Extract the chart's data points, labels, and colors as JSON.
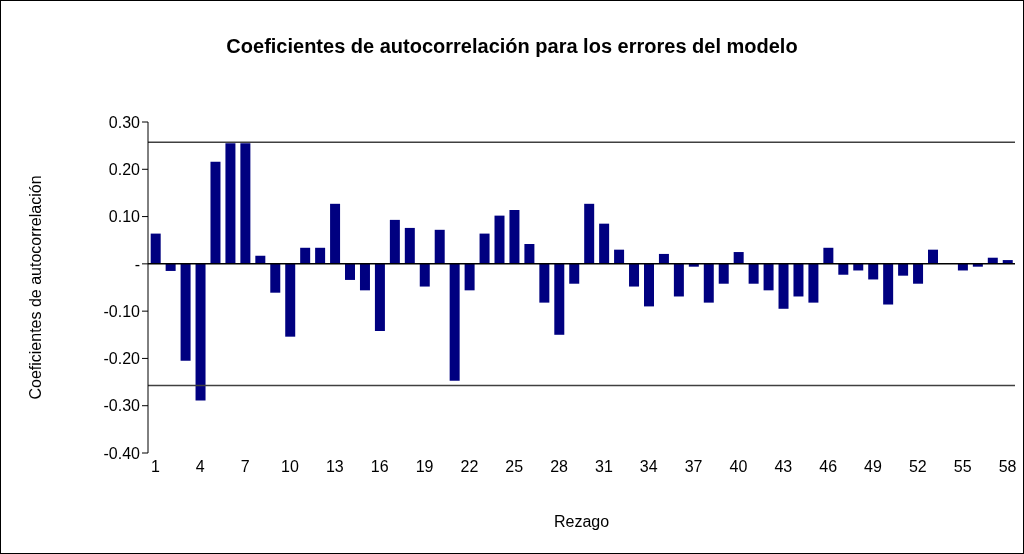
{
  "chart_data": {
    "type": "bar",
    "title": "Coeficientes de autocorrelación para los errores del modelo",
    "xlabel": "Rezago",
    "ylabel": "Coeficientes de autocorrelación",
    "categories": [
      "1",
      null,
      null,
      "4",
      null,
      null,
      "7",
      null,
      null,
      "10",
      null,
      null,
      "13",
      null,
      null,
      "16",
      null,
      null,
      "19",
      null,
      null,
      "22",
      null,
      null,
      "25",
      null,
      null,
      "28",
      null,
      null,
      "31",
      null,
      null,
      "34",
      null,
      null,
      "37",
      null,
      null,
      "40",
      null,
      null,
      "43",
      null,
      null,
      "46",
      null,
      null,
      "49",
      null,
      null,
      "52",
      null,
      null,
      "55",
      null,
      null,
      "58"
    ],
    "values": [
      0.064,
      -0.015,
      -0.205,
      -0.289,
      0.216,
      0.255,
      0.255,
      0.017,
      -0.061,
      -0.154,
      0.034,
      0.034,
      0.127,
      -0.034,
      -0.056,
      -0.142,
      0.093,
      0.076,
      -0.048,
      0.072,
      -0.247,
      -0.056,
      0.064,
      0.102,
      0.114,
      0.042,
      -0.082,
      -0.15,
      -0.042,
      0.127,
      0.085,
      0.03,
      -0.048,
      -0.09,
      0.021,
      -0.069,
      -0.006,
      -0.082,
      -0.042,
      0.025,
      -0.042,
      -0.056,
      -0.095,
      -0.069,
      -0.082,
      0.034,
      -0.023,
      -0.014,
      -0.033,
      -0.086,
      -0.025,
      -0.042,
      0.03,
      0,
      -0.014,
      -0.006,
      0.013,
      0.008
    ],
    "color": "#000080",
    "ylim": [
      -0.4,
      0.3
    ],
    "yticks": [
      {
        "value": 0.3,
        "label": "0.30"
      },
      {
        "value": 0.2,
        "label": "0.20"
      },
      {
        "value": 0.1,
        "label": "0.10"
      },
      {
        "value": 0,
        "label": "-"
      },
      {
        "value": -0.1,
        "label": "-0.10"
      },
      {
        "value": -0.2,
        "label": "-0.20"
      },
      {
        "value": -0.3,
        "label": "-0.30"
      },
      {
        "value": -0.4,
        "label": "-0.40"
      }
    ],
    "ref_lines": [
      {
        "axis": "y",
        "value": 0.257,
        "color": "#404040"
      },
      {
        "axis": "y",
        "value": -0.257,
        "color": "#404040"
      }
    ]
  }
}
